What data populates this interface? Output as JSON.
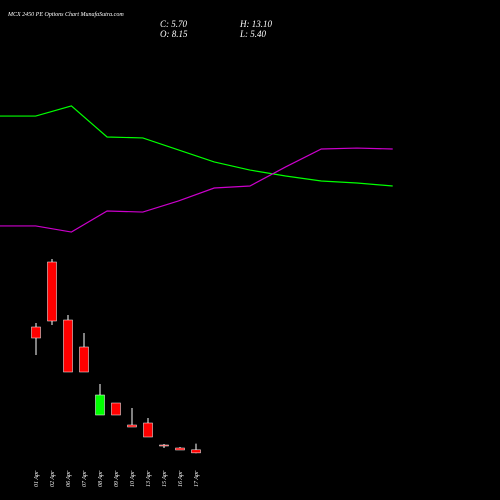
{
  "chart_data": [
    {
      "type": "candlestick",
      "title": "MCX 2450 PE Options Chart MunafaSutra.com",
      "ohlc_labels": [
        {
          "value": 5.7,
          "label": "C: 5.70"
        },
        {
          "value": 13.1,
          "label": "H: 13.10"
        },
        {
          "value": 8.15,
          "label": "O: 8.15"
        },
        {
          "value": 5.4,
          "label": "L: 5.40"
        }
      ],
      "categories": [
        "01 Apr",
        "02 Apr",
        "06 Apr",
        "07 Apr",
        "08 Apr",
        "09 Apr",
        "10 Apr",
        "13 Apr",
        "15 Apr",
        "16 Apr",
        "17 Apr"
      ],
      "open": [
        106.4,
        158.4,
        112,
        90.4,
        36,
        45.6,
        28,
        29.6,
        12,
        9.6,
        8.15
      ],
      "high": [
        109.6,
        160.8,
        116,
        101.6,
        60.8,
        45.6,
        41.6,
        33.6,
        12.8,
        10.4,
        13.1
      ],
      "low": [
        84,
        108,
        70.4,
        70.4,
        36,
        36,
        26.4,
        18.4,
        9.6,
        8,
        5.4
      ],
      "close": [
        97.6,
        111.2,
        70.4,
        70.4,
        52,
        36,
        26.4,
        18.4,
        11.2,
        8,
        5.7
      ],
      "up_color": "#00ff00",
      "down_color": "#ff0000",
      "ylim": [
        0,
        164
      ]
    },
    {
      "type": "line",
      "series": [
        {
          "color": "#00ff00",
          "values": [
            88.1,
            88.1,
            95.6,
            72.6,
            71.9,
            63,
            54.1,
            48.1,
            43.7,
            40,
            38.5,
            36.3
          ]
        },
        {
          "color": "#cc00cc",
          "values": [
            6.7,
            6.7,
            2.2,
            17.8,
            17,
            25.2,
            34.8,
            36.3,
            50.4,
            63.7,
            64.4,
            63.7
          ]
        }
      ],
      "ylim": [
        0,
        100
      ]
    }
  ]
}
